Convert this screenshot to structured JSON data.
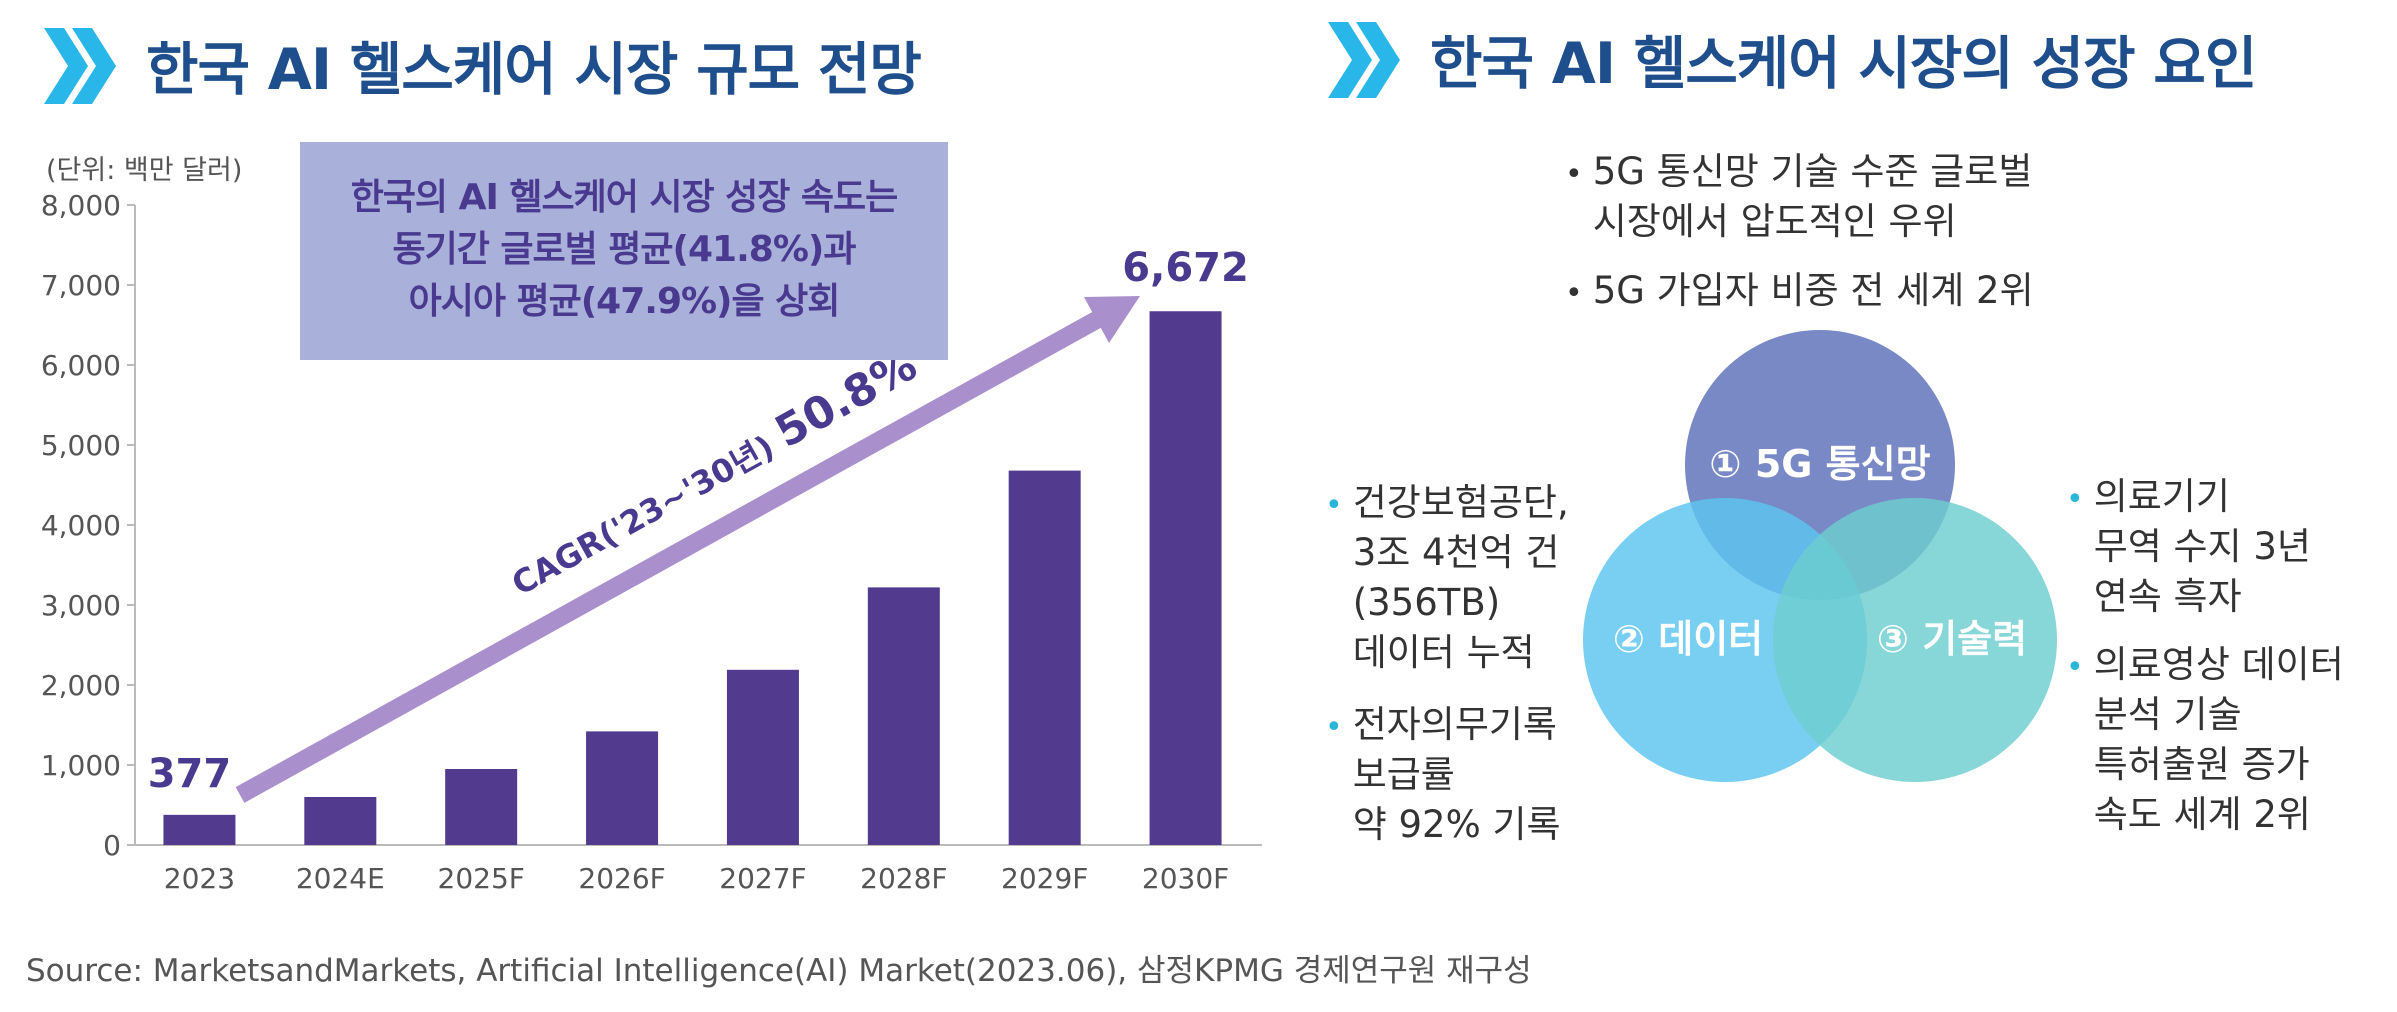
{
  "left_panel": {
    "title": "한국 AI 헬스케어 시장 규모 전망",
    "unit_label": "(단위: 백만 달러)",
    "callout_lines": [
      "한국의 AI 헬스케어 시장 성장 속도는",
      "동기간 글로벌 평균(41.8%)과",
      "아시아 평균(47.9%)을 상회"
    ],
    "cagr_label": "CAGR('23~'30년)",
    "cagr_value": "50.8%"
  },
  "chart_data": {
    "type": "bar",
    "categories": [
      "2023",
      "2024E",
      "2025F",
      "2026F",
      "2027F",
      "2028F",
      "2029F",
      "2030F"
    ],
    "values": [
      377,
      600,
      950,
      1420,
      2190,
      3220,
      4680,
      6672
    ],
    "data_labels": {
      "2023": "377",
      "2030F": "6,672"
    },
    "ylim": [
      0,
      8000
    ],
    "yticks": [
      "0",
      "1,000",
      "2,000",
      "3,000",
      "4,000",
      "5,000",
      "6,000",
      "7,000",
      "8,000"
    ],
    "grid": false,
    "bar_color": "#523a8e"
  },
  "right_panel": {
    "title": "한국 AI 헬스케어 시장의 성장 요인",
    "top_bullets": [
      [
        "5G 통신망 기술 수준 글로벌",
        "시장에서 압도적인 우위"
      ],
      [
        "5G 가입자 비중 전 세계 2위"
      ]
    ],
    "circles": {
      "top": "① 5G 통신망",
      "left": "② 데이터",
      "right": "③ 기술력"
    },
    "left_bullets": [
      [
        "건강보험공단,",
        "3조 4천억 건",
        "(356TB)",
        "데이터 누적"
      ],
      [
        "전자의무기록",
        "보급률",
        "약 92% 기록"
      ]
    ],
    "right_bullets": [
      [
        "의료기기",
        "무역 수지 3년",
        "연속 흑자"
      ],
      [
        "의료영상 데이터",
        "분석 기술",
        "특허출원 증가",
        "속도 세계 2위"
      ]
    ]
  },
  "source": "Source: MarketsandMarkets, Artificial Intelligence(AI) Market(2023.06), 삼정KPMG 경제연구원 재구성",
  "colors": {
    "title": "#1f4e8c",
    "chevron": "#29b6e8",
    "arrow": "#a98fcc",
    "callout_bg": "#a9b1da",
    "circle_top": "#6a7cc0",
    "circle_left": "#5cc4ef",
    "circle_right": "#6ccdd0"
  }
}
